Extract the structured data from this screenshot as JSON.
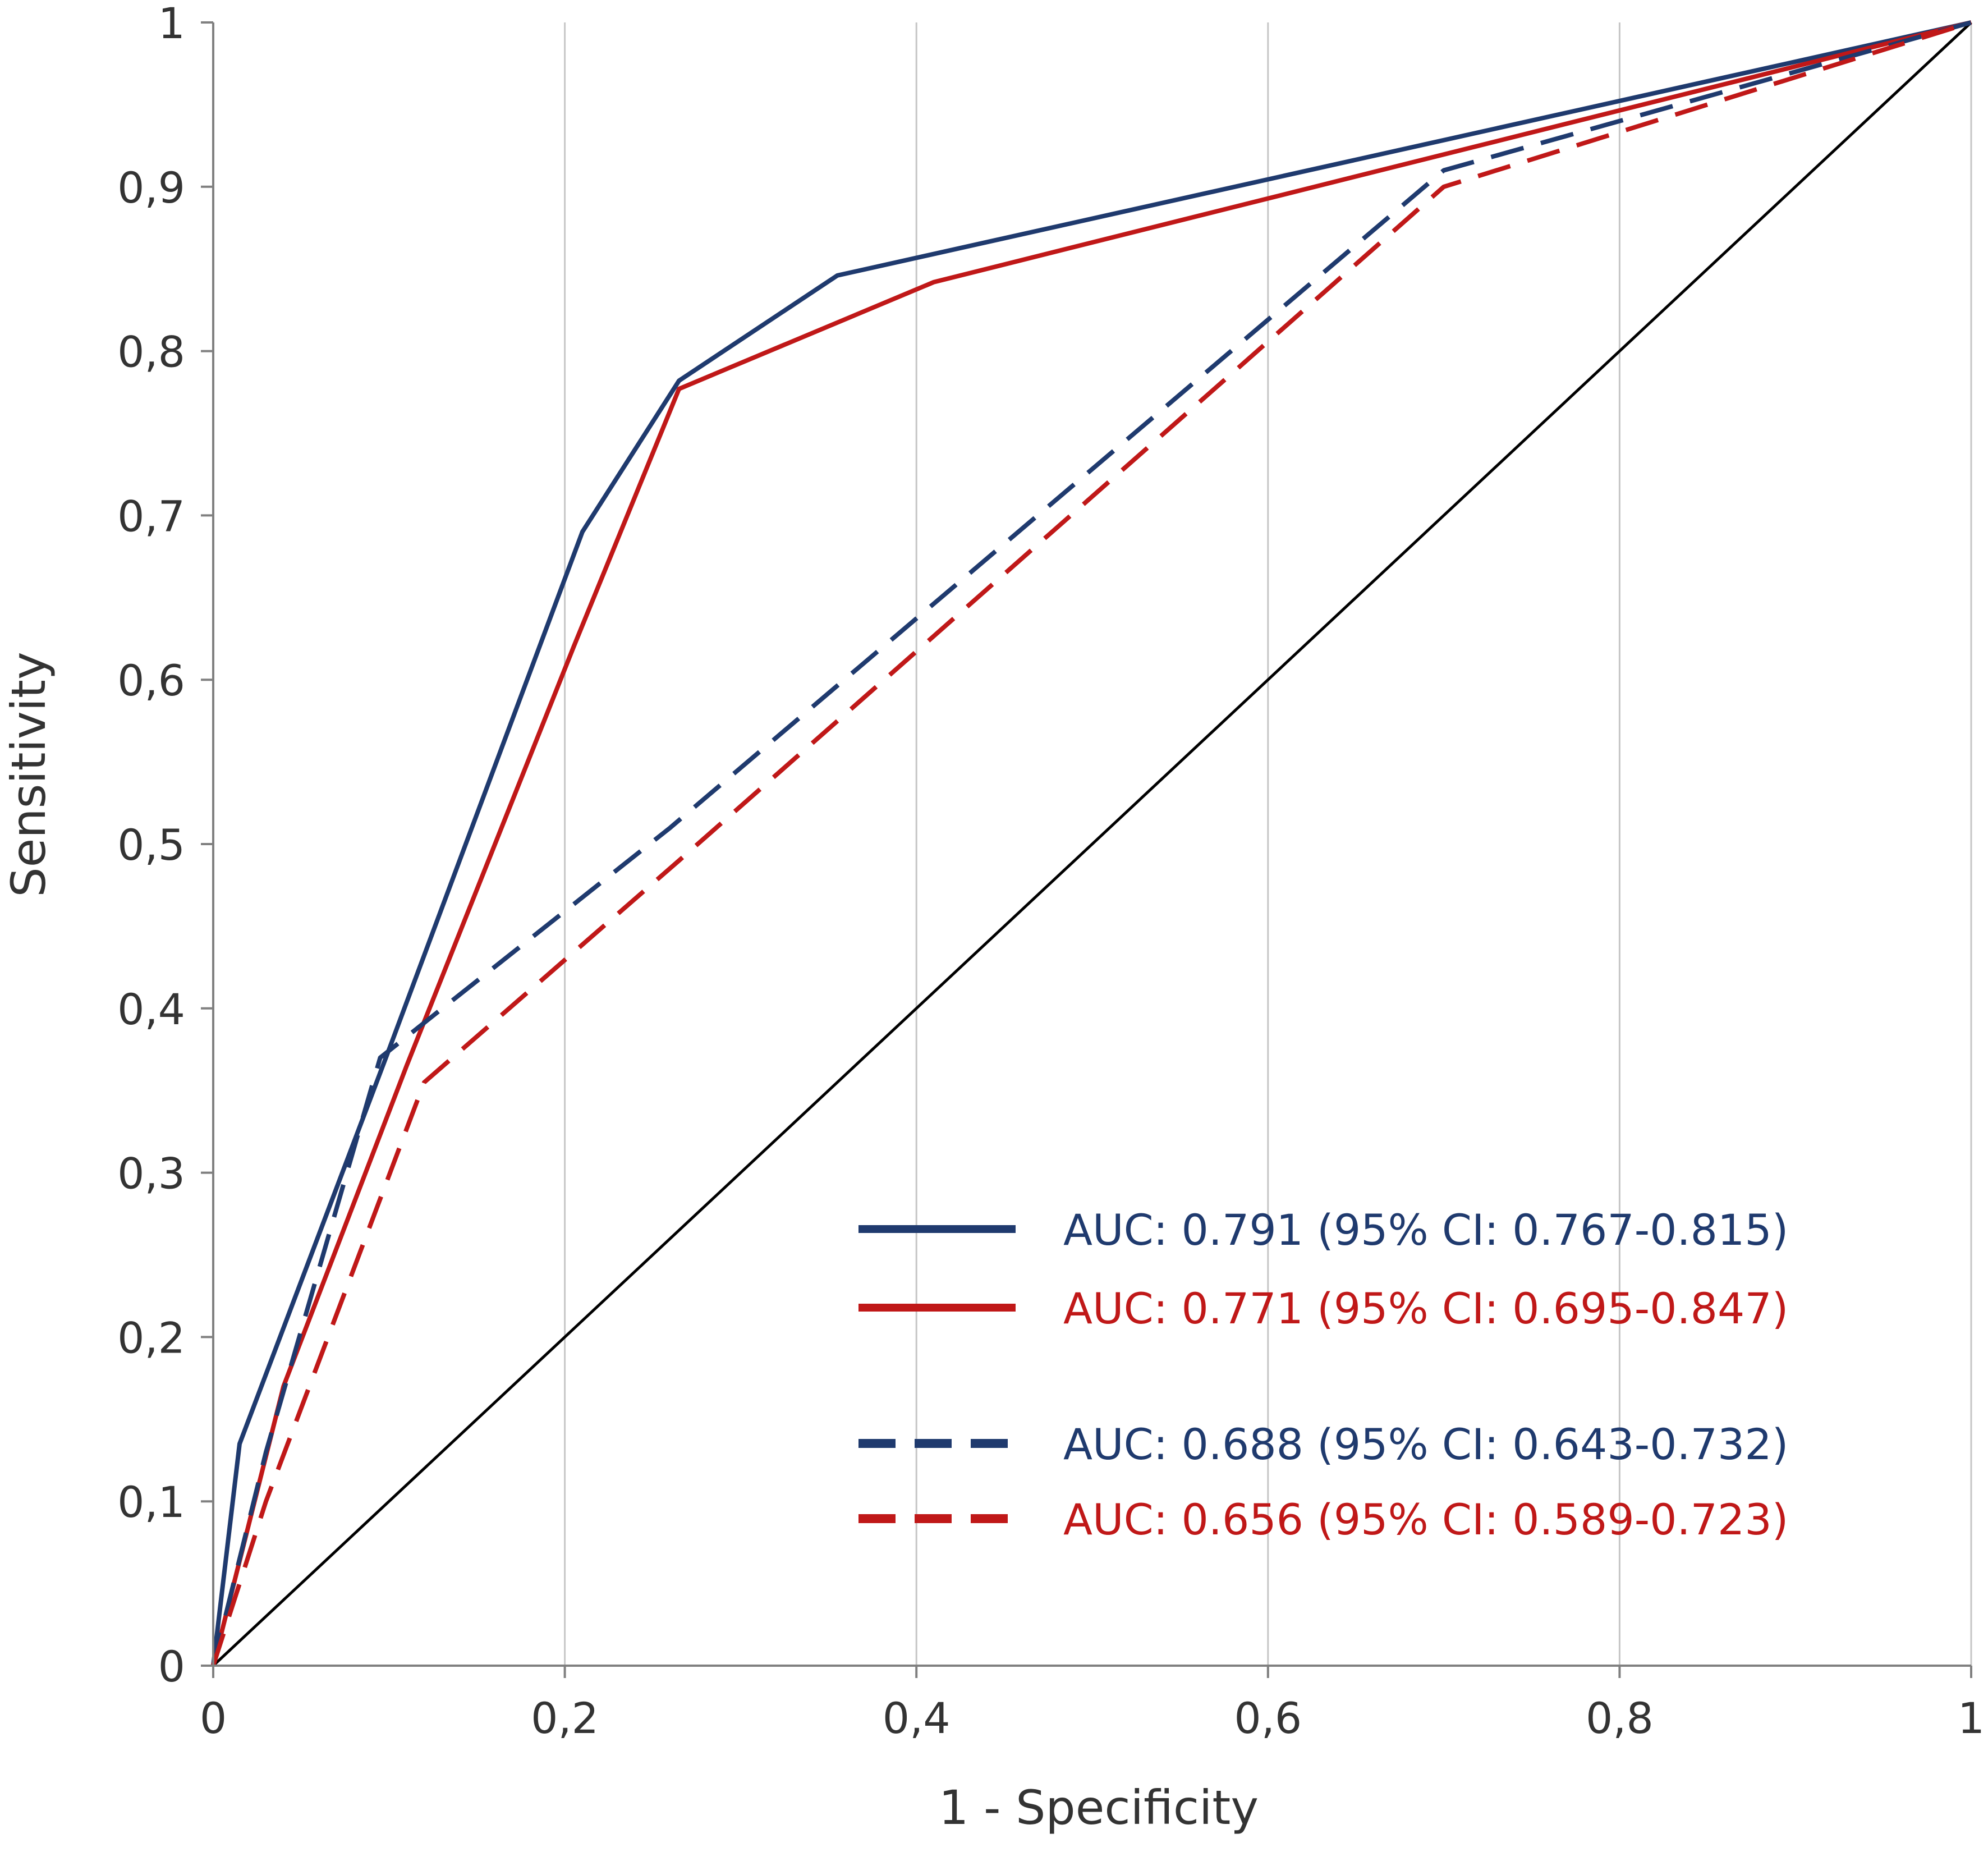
{
  "chart_data": {
    "type": "line",
    "title": "",
    "xlabel": "1 - Specificity",
    "ylabel": "Sensitivity",
    "xlim": [
      0,
      1
    ],
    "ylim": [
      0,
      1
    ],
    "grid": "vertical",
    "x_ticks": [
      "0",
      "0,2",
      "0,4",
      "0,6",
      "0,8",
      "1"
    ],
    "x_tick_values": [
      0,
      0.2,
      0.4,
      0.6,
      0.8,
      1
    ],
    "y_ticks": [
      "0",
      "0,1",
      "0,2",
      "0,3",
      "0,4",
      "0,5",
      "0,6",
      "0,7",
      "0,8",
      "0,9",
      "1"
    ],
    "y_tick_values": [
      0,
      0.1,
      0.2,
      0.3,
      0.4,
      0.5,
      0.6,
      0.7,
      0.8,
      0.9,
      1
    ],
    "legend_position": "bottom-right",
    "series": [
      {
        "name": "AUC: 0.791 (95% CI: 0.767-0.815)",
        "color": "#1f3a6e",
        "dash": "solid",
        "points": [
          [
            0,
            0
          ],
          [
            0.015,
            0.135
          ],
          [
            0.1,
            0.375
          ],
          [
            0.21,
            0.69
          ],
          [
            0.265,
            0.782
          ],
          [
            0.355,
            0.846
          ],
          [
            1,
            1
          ]
        ]
      },
      {
        "name": "AUC: 0.771 (95% CI: 0.695-0.847)",
        "color": "#c01818",
        "dash": "solid",
        "points": [
          [
            0,
            0
          ],
          [
            0.04,
            0.17
          ],
          [
            0.11,
            0.365
          ],
          [
            0.205,
            0.62
          ],
          [
            0.265,
            0.777
          ],
          [
            0.41,
            0.842
          ],
          [
            1,
            1
          ]
        ]
      },
      {
        "name": "AUC: 0.688 (95% CI: 0.643-0.732)",
        "color": "#1f3a6e",
        "dash": "dashed",
        "points": [
          [
            0,
            0
          ],
          [
            0.03,
            0.13
          ],
          [
            0.095,
            0.37
          ],
          [
            0.26,
            0.51
          ],
          [
            0.7,
            0.91
          ],
          [
            1,
            1
          ]
        ]
      },
      {
        "name": "AUC: 0.656 (95% CI: 0.589-0.723)",
        "color": "#c01818",
        "dash": "dashed",
        "points": [
          [
            0,
            0
          ],
          [
            0.03,
            0.1
          ],
          [
            0.12,
            0.355
          ],
          [
            0.265,
            0.49
          ],
          [
            0.7,
            0.9
          ],
          [
            1,
            1
          ]
        ]
      },
      {
        "name": "reference",
        "color": "#000000",
        "dash": "solid",
        "points": [
          [
            0,
            0
          ],
          [
            1,
            1
          ]
        ]
      }
    ]
  }
}
